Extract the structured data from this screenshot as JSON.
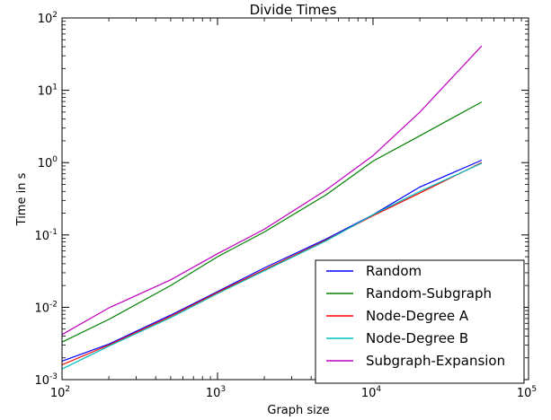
{
  "chart_data": {
    "type": "line",
    "title": "Divide Times",
    "xlabel": "Graph size",
    "ylabel": "Time in s",
    "xscale": "log",
    "yscale": "log",
    "xlim": [
      100,
      100000
    ],
    "ylim": [
      0.001,
      100
    ],
    "grid": false,
    "legend_position": "bottom-right",
    "x_ticks": [
      {
        "base": "10",
        "exp": "2",
        "value": 100
      },
      {
        "base": "10",
        "exp": "3",
        "value": 1000
      },
      {
        "base": "10",
        "exp": "4",
        "value": 10000
      },
      {
        "base": "10",
        "exp": "5",
        "value": 100000
      }
    ],
    "y_ticks": [
      {
        "base": "10",
        "exp": "-3",
        "value": 0.001
      },
      {
        "base": "10",
        "exp": "-2",
        "value": 0.01
      },
      {
        "base": "10",
        "exp": "-1",
        "value": 0.1
      },
      {
        "base": "10",
        "exp": "0",
        "value": 1
      },
      {
        "base": "10",
        "exp": "1",
        "value": 10
      },
      {
        "base": "10",
        "exp": "2",
        "value": 100
      }
    ],
    "x": [
      100,
      200,
      500,
      1000,
      2000,
      5000,
      10000,
      20000,
      50000
    ],
    "series": [
      {
        "name": "Random",
        "color": "#0000ff",
        "values": [
          0.0018,
          0.0031,
          0.0078,
          0.0165,
          0.035,
          0.088,
          0.19,
          0.46,
          1.08
        ]
      },
      {
        "name": "Random-Subgraph",
        "color": "#008000",
        "values": [
          0.0033,
          0.0068,
          0.02,
          0.05,
          0.11,
          0.36,
          1.05,
          2.35,
          6.9
        ]
      },
      {
        "name": "Node-Degree A",
        "color": "#ff0000",
        "values": [
          0.0016,
          0.003,
          0.0075,
          0.016,
          0.033,
          0.085,
          0.185,
          0.38,
          1.0
        ]
      },
      {
        "name": "Node-Degree B",
        "color": "#00bfbf",
        "values": [
          0.0014,
          0.0029,
          0.0072,
          0.0155,
          0.032,
          0.083,
          0.19,
          0.4,
          0.98
        ]
      },
      {
        "name": "Subgraph-Expansion",
        "color": "#bf00bf",
        "values": [
          0.0042,
          0.0098,
          0.024,
          0.055,
          0.12,
          0.42,
          1.25,
          5.0,
          41.0
        ]
      }
    ]
  }
}
